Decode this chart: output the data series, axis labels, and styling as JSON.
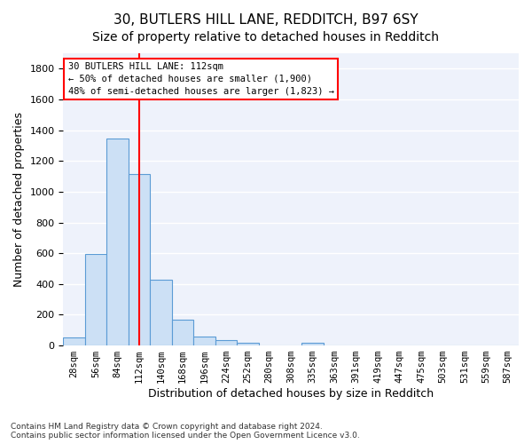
{
  "title_line1": "30, BUTLERS HILL LANE, REDDITCH, B97 6SY",
  "title_line2": "Size of property relative to detached houses in Redditch",
  "xlabel": "Distribution of detached houses by size in Redditch",
  "ylabel": "Number of detached properties",
  "footnote": "Contains HM Land Registry data © Crown copyright and database right 2024.\nContains public sector information licensed under the Open Government Licence v3.0.",
  "bin_labels": [
    "28sqm",
    "56sqm",
    "84sqm",
    "112sqm",
    "140sqm",
    "168sqm",
    "196sqm",
    "224sqm",
    "252sqm",
    "280sqm",
    "308sqm",
    "335sqm",
    "363sqm",
    "391sqm",
    "419sqm",
    "447sqm",
    "475sqm",
    "503sqm",
    "531sqm",
    "559sqm",
    "587sqm"
  ],
  "bar_values": [
    55,
    595,
    1345,
    1115,
    425,
    170,
    60,
    38,
    15,
    0,
    0,
    20,
    0,
    0,
    0,
    0,
    0,
    0,
    0,
    0,
    0
  ],
  "bar_color": "#cce0f5",
  "bar_edge_color": "#5b9bd5",
  "vline_x": 3,
  "vline_color": "red",
  "annotation_text": "30 BUTLERS HILL LANE: 112sqm\n← 50% of detached houses are smaller (1,900)\n48% of semi-detached houses are larger (1,823) →",
  "annotation_box_color": "white",
  "annotation_box_edge": "red",
  "ylim": [
    0,
    1900
  ],
  "yticks": [
    0,
    200,
    400,
    600,
    800,
    1000,
    1200,
    1400,
    1600,
    1800
  ],
  "bg_color": "#eef2fb",
  "grid_color": "#ffffff",
  "title1_fontsize": 11,
  "title2_fontsize": 10,
  "xlabel_fontsize": 9,
  "ylabel_fontsize": 9
}
